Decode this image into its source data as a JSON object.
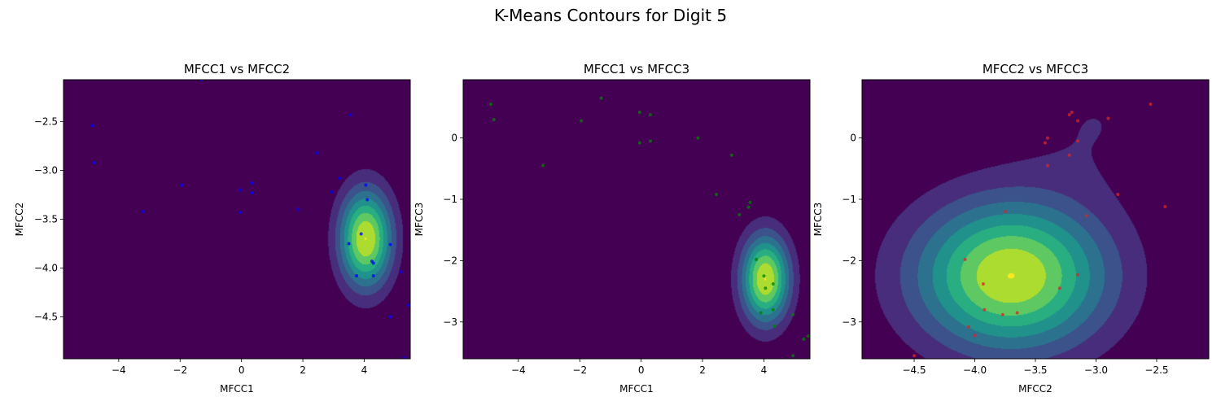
{
  "figure": {
    "title": "K-Means Contours for Digit 5"
  },
  "colormap": [
    "#440154",
    "#472d7b",
    "#3b528b",
    "#2c728e",
    "#21918c",
    "#28ae80",
    "#5ec962",
    "#addc30",
    "#fde725"
  ],
  "chart_data": [
    {
      "type": "contour",
      "title": "MFCC1 vs MFCC2",
      "xlabel": "MFCC1",
      "ylabel": "MFCC2",
      "xlim": [
        -5.8,
        5.5
      ],
      "ylim": [
        -4.93,
        -2.07
      ],
      "xticks": [
        -4,
        -2,
        0,
        2,
        4
      ],
      "yticks": [
        -4.5,
        -4.0,
        -3.5,
        -3.0,
        -2.5
      ],
      "xtick_labels": [
        "−4",
        "−2",
        "0",
        "2",
        "4"
      ],
      "ytick_labels": [
        "−4.5",
        "−4.0",
        "−3.5",
        "−3.0",
        "−2.5"
      ],
      "point_color": "#0000ff",
      "points": [
        [
          -4.85,
          -2.54
        ],
        [
          -4.8,
          -2.92
        ],
        [
          -3.2,
          -3.42
        ],
        [
          -1.95,
          -3.15
        ],
        [
          -1.3,
          -2.07
        ],
        [
          -0.05,
          -3.2
        ],
        [
          -0.05,
          -3.43
        ],
        [
          0.35,
          -3.13
        ],
        [
          0.35,
          -3.23
        ],
        [
          1.85,
          -3.4
        ],
        [
          2.45,
          -2.82
        ],
        [
          2.95,
          -3.22
        ],
        [
          3.2,
          -3.08
        ],
        [
          3.5,
          -3.75
        ],
        [
          3.55,
          -2.43
        ],
        [
          3.75,
          -4.08
        ],
        [
          3.9,
          -3.65
        ],
        [
          4.05,
          -3.15
        ],
        [
          4.1,
          -3.3
        ],
        [
          4.25,
          -3.93
        ],
        [
          4.3,
          -3.95
        ],
        [
          4.3,
          -4.08
        ],
        [
          4.85,
          -3.76
        ],
        [
          4.85,
          -4.5
        ],
        [
          5.2,
          -4.04
        ],
        [
          5.45,
          -4.38
        ],
        [
          5.3,
          -4.92
        ]
      ],
      "clusters": [
        {
          "center": [
            -2.0,
            -2.95
          ],
          "sd": [
            0.9,
            0.75
          ],
          "peak": 0.12
        },
        {
          "center": [
            4.05,
            -3.7
          ],
          "sd": [
            0.6,
            0.35
          ],
          "peak": 1.0
        }
      ]
    },
    {
      "type": "contour",
      "title": "MFCC1 vs MFCC3",
      "xlabel": "MFCC1",
      "ylabel": "MFCC3",
      "xlim": [
        -5.8,
        5.5
      ],
      "ylim": [
        -3.6,
        0.95
      ],
      "xticks": [
        -4,
        -2,
        0,
        2,
        4
      ],
      "yticks": [
        -3,
        -2,
        -1,
        0
      ],
      "xtick_labels": [
        "−4",
        "−2",
        "0",
        "2",
        "4"
      ],
      "ytick_labels": [
        "−3",
        "−2",
        "−1",
        "0"
      ],
      "point_color": "#008000",
      "points": [
        [
          -4.9,
          0.55
        ],
        [
          -4.8,
          0.3
        ],
        [
          -3.2,
          -0.45
        ],
        [
          -1.95,
          0.28
        ],
        [
          -1.3,
          0.65
        ],
        [
          -0.05,
          0.42
        ],
        [
          -0.05,
          -0.08
        ],
        [
          0.3,
          0.38
        ],
        [
          0.3,
          -0.05
        ],
        [
          1.85,
          0.0
        ],
        [
          2.95,
          -0.28
        ],
        [
          2.45,
          -0.92
        ],
        [
          3.2,
          -1.25
        ],
        [
          3.5,
          -1.13
        ],
        [
          3.55,
          -1.05
        ],
        [
          3.75,
          -1.98
        ],
        [
          3.9,
          -2.85
        ],
        [
          4.0,
          -2.25
        ],
        [
          4.05,
          -2.45
        ],
        [
          4.3,
          -2.38
        ],
        [
          4.3,
          -2.8
        ],
        [
          4.35,
          -3.07
        ],
        [
          4.95,
          -2.88
        ],
        [
          5.45,
          -3.23
        ],
        [
          5.3,
          -3.28
        ],
        [
          4.95,
          -3.55
        ]
      ],
      "clusters": [
        {
          "center": [
            -1.95,
            0.3
          ],
          "sd": [
            0.6,
            0.75
          ],
          "peak": 0.12
        },
        {
          "center": [
            4.05,
            -2.3
          ],
          "sd": [
            0.55,
            0.5
          ],
          "peak": 1.0
        }
      ]
    },
    {
      "type": "contour",
      "title": "MFCC2 vs MFCC3",
      "xlabel": "MFCC2",
      "ylabel": "MFCC3",
      "xlim": [
        -4.93,
        -2.07
      ],
      "ylim": [
        -3.6,
        0.95
      ],
      "xticks": [
        -4.5,
        -4.0,
        -3.5,
        -3.0,
        -2.5
      ],
      "yticks": [
        -3,
        -2,
        -1,
        0
      ],
      "xtick_labels": [
        "−4.5",
        "−4.0",
        "−3.5",
        "−3.0",
        "−2.5"
      ],
      "ytick_labels": [
        "−3",
        "−2",
        "−1",
        "0"
      ],
      "point_color": "#d62728",
      "points": [
        [
          -2.55,
          0.55
        ],
        [
          -2.9,
          0.32
        ],
        [
          -3.2,
          0.42
        ],
        [
          -3.22,
          0.38
        ],
        [
          -3.15,
          0.28
        ],
        [
          -3.4,
          0.0
        ],
        [
          -3.42,
          -0.08
        ],
        [
          -3.15,
          -0.05
        ],
        [
          -3.22,
          -0.28
        ],
        [
          -3.4,
          -0.45
        ],
        [
          -2.82,
          -0.92
        ],
        [
          -2.43,
          -1.12
        ],
        [
          -3.08,
          -1.27
        ],
        [
          -3.75,
          -1.2
        ],
        [
          -4.08,
          -1.98
        ],
        [
          -3.93,
          -2.38
        ],
        [
          -3.3,
          -2.45
        ],
        [
          -3.15,
          -2.23
        ],
        [
          -3.92,
          -2.8
        ],
        [
          -3.77,
          -2.88
        ],
        [
          -3.65,
          -2.85
        ],
        [
          -4.05,
          -3.08
        ],
        [
          -4.0,
          -3.22
        ],
        [
          -4.5,
          -3.55
        ]
      ],
      "clusters": [
        {
          "center": [
            -3.7,
            -2.25
          ],
          "sd": [
            0.55,
            0.85
          ],
          "peak": 1.0
        },
        {
          "center": [
            -3.0,
            0.3
          ],
          "sd": [
            0.5,
            0.8
          ],
          "peak": 0.12
        }
      ]
    }
  ]
}
